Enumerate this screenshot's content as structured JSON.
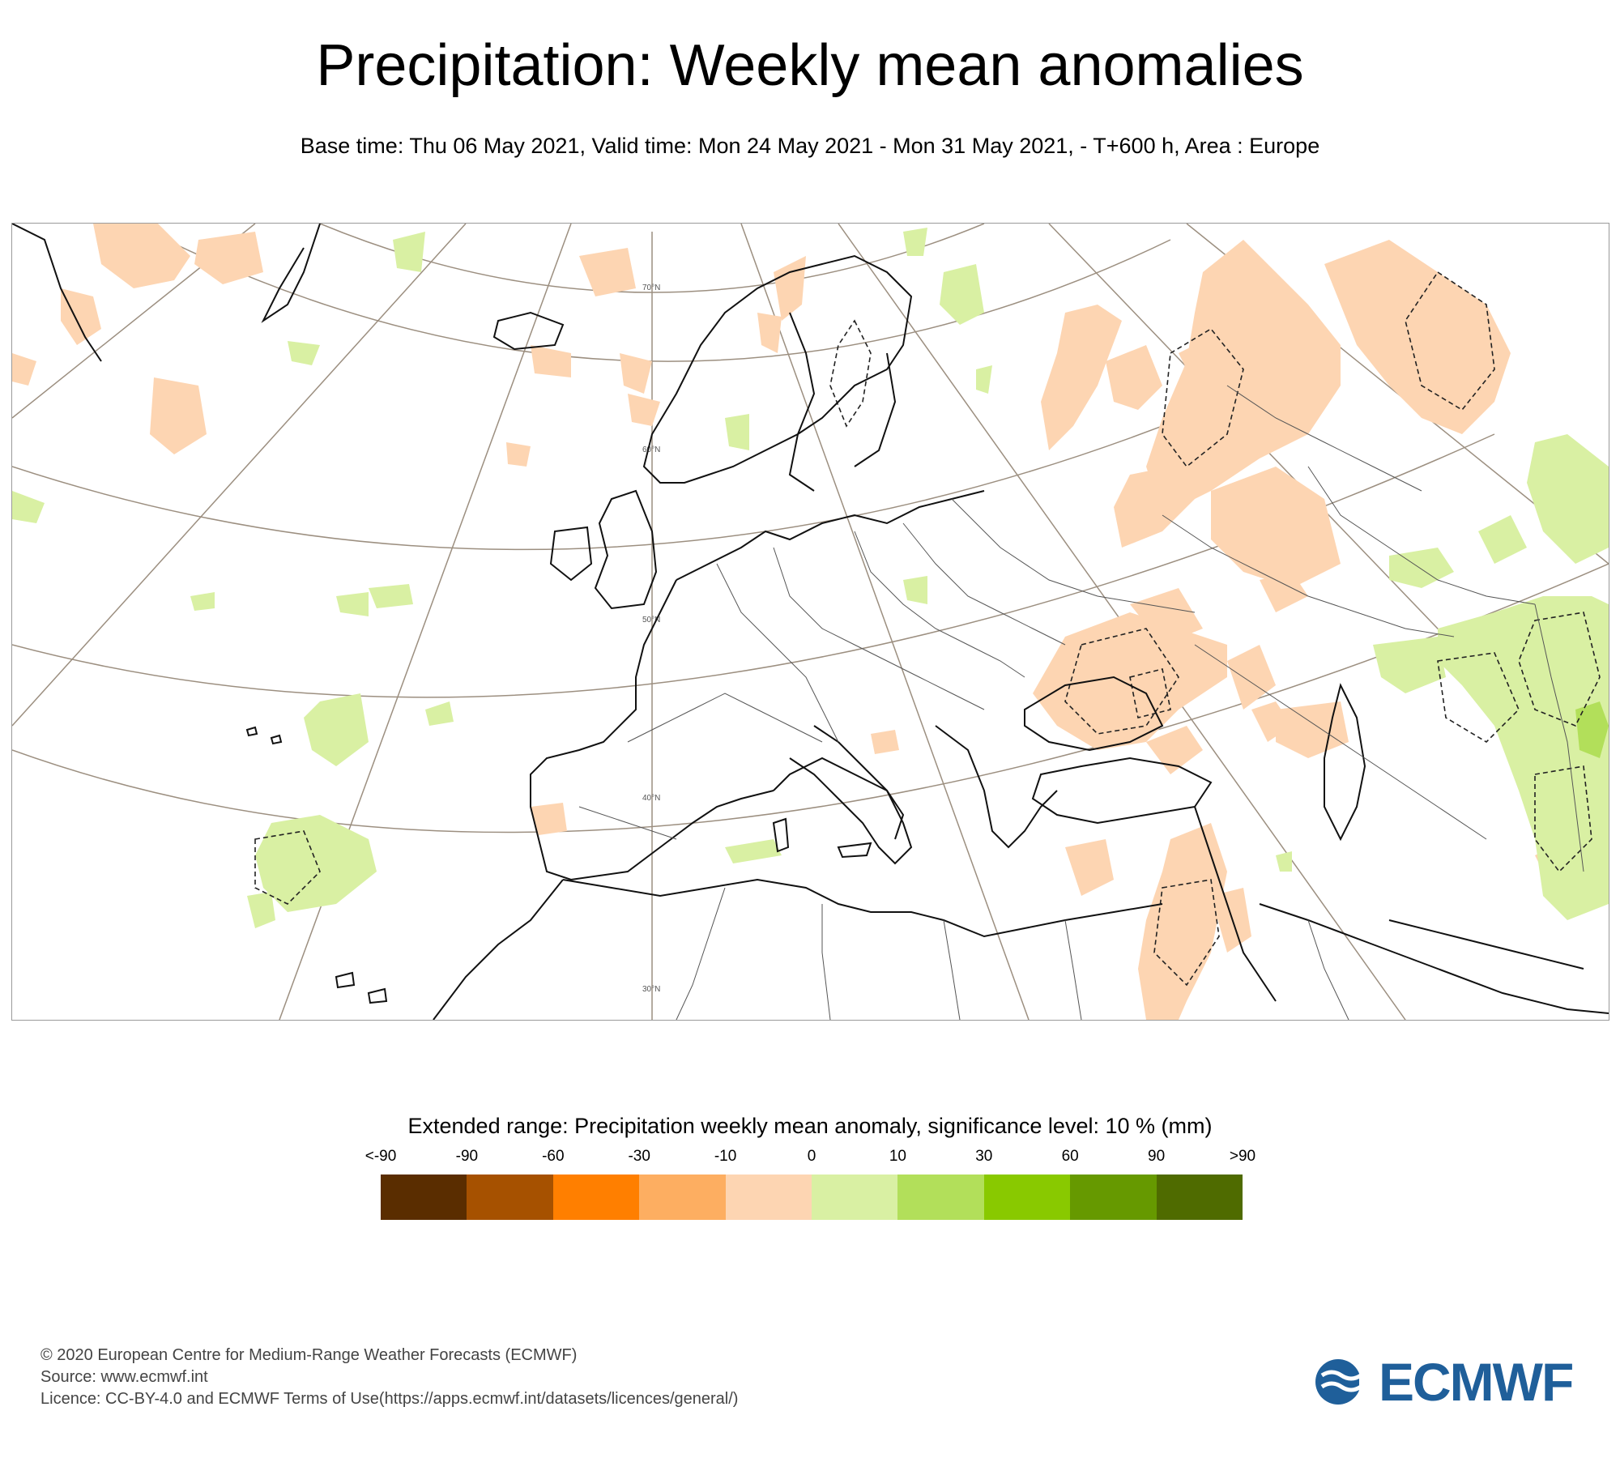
{
  "title": "Precipitation: Weekly mean anomalies",
  "subtitle": "Base time: Thu 06 May 2021, Valid time: Mon 24 May 2021 - Mon 31 May 2021, - T+600 h, Area : Europe",
  "map": {
    "latitude_labels": [
      "70°N",
      "60°N",
      "50°N",
      "40°N",
      "30°N"
    ],
    "colors": {
      "land_line": "#111111",
      "grid_line": "#9c8f80",
      "border_line": "#555555"
    }
  },
  "legend": {
    "title": "Extended range: Precipitation weekly mean anomaly, significance level: 10 % (mm)",
    "labels": [
      "<-90",
      "-90",
      "-60",
      "-30",
      "-10",
      "0",
      "10",
      "30",
      "60",
      "90",
      ">90"
    ],
    "colors": [
      "#5a2d00",
      "#a65100",
      "#ff7f00",
      "#fdae61",
      "#fdd5b2",
      "#d9f0a3",
      "#b2df5a",
      "#89c900",
      "#669900",
      "#4f6b00"
    ]
  },
  "footer": {
    "line1": "© 2020 European Centre for Medium-Range Weather Forecasts (ECMWF)",
    "line2": "Source: www.ecmwf.int",
    "line3": "Licence: CC-BY-4.0 and ECMWF Terms of Use(https://apps.ecmwf.int/datasets/licences/general/)"
  },
  "logo": {
    "text": "ECMWF",
    "color": "#1f5f9a"
  }
}
